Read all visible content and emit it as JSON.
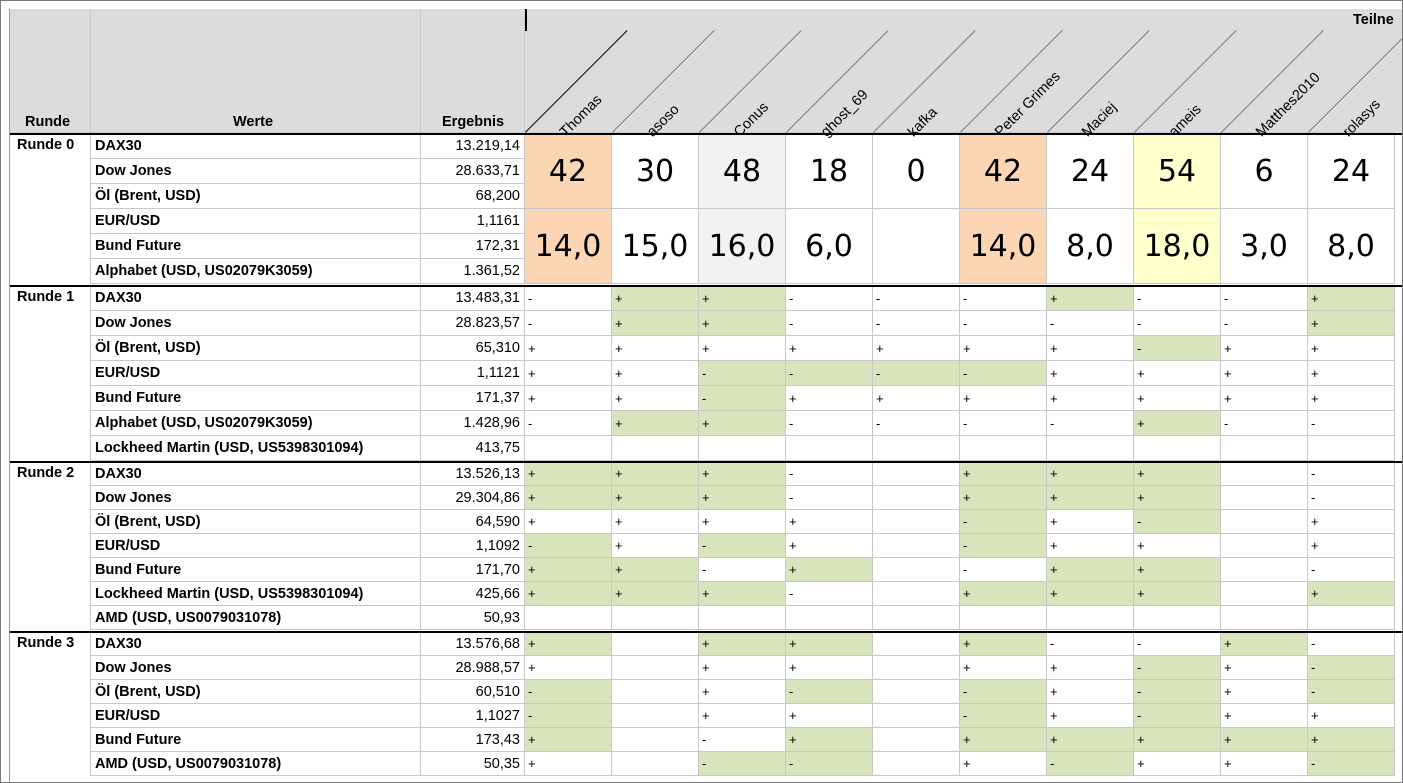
{
  "header": {
    "runde_label": "Runde",
    "werte_label": "Werte",
    "ergebnis_label": "Ergebnis",
    "teilnehmer_label": "Teilne"
  },
  "participants": [
    "Thomas",
    "asoso",
    "Conus",
    "ghost_69",
    "kafka",
    "Peter Grimes",
    "Maciej",
    "ameis",
    "Matthes2010",
    "rolasys"
  ],
  "rounds": [
    {
      "label": "Runde 0",
      "rows": [
        {
          "wert": "DAX30",
          "ergebnis": "13.219,14"
        },
        {
          "wert": "Dow Jones",
          "ergebnis": "28.633,71"
        },
        {
          "wert": "Öl (Brent, USD)",
          "ergebnis": "68,200"
        },
        {
          "wert": "EUR/USD",
          "ergebnis": "1,1161"
        },
        {
          "wert": "Bund Future",
          "ergebnis": "172,31"
        },
        {
          "wert": "Alphabet (USD, US02079K3059)",
          "ergebnis": "1.361,52"
        }
      ],
      "points": [
        "42",
        "30",
        "48",
        "18",
        "0",
        "42",
        "24",
        "54",
        "6",
        "24"
      ],
      "scores": [
        "14,0",
        "15,0",
        "16,0",
        "6,0",
        "",
        "14,0",
        "8,0",
        "18,0",
        "3,0",
        "8,0"
      ],
      "highlight": [
        "orange",
        "",
        "grey",
        "",
        "",
        "orange",
        "",
        "yellow",
        "",
        ""
      ]
    },
    {
      "label": "Runde 1",
      "rows": [
        {
          "wert": "DAX30",
          "ergebnis": "13.483,31",
          "marks": [
            "-",
            "+",
            "+",
            "-",
            "-",
            "-",
            "+",
            "-",
            "-",
            "+"
          ],
          "green": [
            0,
            1,
            1,
            0,
            0,
            0,
            1,
            0,
            0,
            1
          ]
        },
        {
          "wert": "Dow Jones",
          "ergebnis": "28.823,57",
          "marks": [
            "-",
            "+",
            "+",
            "-",
            "-",
            "-",
            "-",
            "-",
            "-",
            "+"
          ],
          "green": [
            0,
            1,
            1,
            0,
            0,
            0,
            0,
            0,
            0,
            1
          ]
        },
        {
          "wert": "Öl (Brent, USD)",
          "ergebnis": "65,310",
          "marks": [
            "+",
            "+",
            "+",
            "+",
            "+",
            "+",
            "+",
            "-",
            "+",
            "+"
          ],
          "green": [
            0,
            0,
            0,
            0,
            0,
            0,
            0,
            1,
            0,
            0
          ]
        },
        {
          "wert": "EUR/USD",
          "ergebnis": "1,1121",
          "marks": [
            "+",
            "+",
            "-",
            "-",
            "-",
            "-",
            "+",
            "+",
            "+",
            "+"
          ],
          "green": [
            0,
            0,
            1,
            1,
            1,
            1,
            0,
            0,
            0,
            0
          ]
        },
        {
          "wert": "Bund Future",
          "ergebnis": "171,37",
          "marks": [
            "+",
            "+",
            "-",
            "+",
            "+",
            "+",
            "+",
            "+",
            "+",
            "+"
          ],
          "green": [
            0,
            0,
            1,
            0,
            0,
            0,
            0,
            0,
            0,
            0
          ]
        },
        {
          "wert": "Alphabet (USD, US02079K3059)",
          "ergebnis": "1.428,96",
          "marks": [
            "-",
            "+",
            "+",
            "-",
            "-",
            "-",
            "-",
            "+",
            "-",
            "-"
          ],
          "green": [
            0,
            1,
            1,
            0,
            0,
            0,
            0,
            1,
            0,
            0
          ]
        },
        {
          "wert": "Lockheed Martin (USD, US5398301094)",
          "ergebnis": "413,75",
          "marks": [
            "",
            "",
            "",
            "",
            "",
            "",
            "",
            "",
            "",
            ""
          ],
          "green": [
            0,
            0,
            0,
            0,
            0,
            0,
            0,
            0,
            0,
            0
          ]
        }
      ]
    },
    {
      "label": "Runde 2",
      "rows": [
        {
          "wert": "DAX30",
          "ergebnis": "13.526,13",
          "marks": [
            "+",
            "+",
            "+",
            "-",
            "",
            "+",
            "+",
            "+",
            "",
            "-"
          ],
          "green": [
            1,
            1,
            1,
            0,
            0,
            1,
            1,
            1,
            0,
            0
          ]
        },
        {
          "wert": "Dow Jones",
          "ergebnis": "29.304,86",
          "marks": [
            "+",
            "+",
            "+",
            "-",
            "",
            "+",
            "+",
            "+",
            "",
            "-"
          ],
          "green": [
            1,
            1,
            1,
            0,
            0,
            1,
            1,
            1,
            0,
            0
          ]
        },
        {
          "wert": "Öl (Brent, USD)",
          "ergebnis": "64,590",
          "marks": [
            "+",
            "+",
            "+",
            "+",
            "",
            "-",
            "+",
            "-",
            "",
            "+"
          ],
          "green": [
            0,
            0,
            0,
            0,
            0,
            1,
            0,
            1,
            0,
            0
          ]
        },
        {
          "wert": "EUR/USD",
          "ergebnis": "1,1092",
          "marks": [
            "-",
            "+",
            "-",
            "+",
            "",
            "-",
            "+",
            "+",
            "",
            "+"
          ],
          "green": [
            1,
            0,
            1,
            0,
            0,
            1,
            0,
            0,
            0,
            0
          ]
        },
        {
          "wert": "Bund Future",
          "ergebnis": "171,70",
          "marks": [
            "+",
            "+",
            "-",
            "+",
            "",
            "-",
            "+",
            "+",
            "",
            "-"
          ],
          "green": [
            1,
            1,
            0,
            1,
            0,
            0,
            1,
            1,
            0,
            0
          ]
        },
        {
          "wert": "Lockheed Martin (USD, US5398301094)",
          "ergebnis": "425,66",
          "marks": [
            "+",
            "+",
            "+",
            "-",
            "",
            "+",
            "+",
            "+",
            "",
            "+"
          ],
          "green": [
            1,
            1,
            1,
            0,
            0,
            1,
            1,
            1,
            0,
            1
          ]
        },
        {
          "wert": "AMD (USD, US0079031078)",
          "ergebnis": "50,93",
          "marks": [
            "",
            "",
            "",
            "",
            "",
            "",
            "",
            "",
            "",
            ""
          ],
          "green": [
            0,
            0,
            0,
            0,
            0,
            0,
            0,
            0,
            0,
            0
          ]
        }
      ]
    },
    {
      "label": "Runde 3",
      "rows": [
        {
          "wert": "DAX30",
          "ergebnis": "13.576,68",
          "marks": [
            "+",
            "",
            "+",
            "+",
            "",
            "+",
            "-",
            "-",
            "+",
            "-"
          ],
          "green": [
            1,
            0,
            1,
            1,
            0,
            1,
            0,
            0,
            1,
            0
          ]
        },
        {
          "wert": "Dow Jones",
          "ergebnis": "28.988,57",
          "marks": [
            "+",
            "",
            "+",
            "+",
            "",
            "+",
            "+",
            "-",
            "+",
            "-"
          ],
          "green": [
            0,
            0,
            0,
            0,
            0,
            0,
            0,
            1,
            0,
            1
          ]
        },
        {
          "wert": "Öl (Brent, USD)",
          "ergebnis": "60,510",
          "marks": [
            "-",
            "",
            "+",
            "-",
            "",
            "-",
            "+",
            "-",
            "+",
            "-"
          ],
          "green": [
            1,
            0,
            0,
            1,
            0,
            1,
            0,
            1,
            0,
            1
          ]
        },
        {
          "wert": "EUR/USD",
          "ergebnis": "1,1027",
          "marks": [
            "-",
            "",
            "+",
            "+",
            "",
            "-",
            "+",
            "-",
            "+",
            "+"
          ],
          "green": [
            1,
            0,
            0,
            0,
            0,
            1,
            0,
            1,
            0,
            0
          ]
        },
        {
          "wert": "Bund Future",
          "ergebnis": "173,43",
          "marks": [
            "+",
            "",
            "-",
            "+",
            "",
            "+",
            "+",
            "+",
            "+",
            "+"
          ],
          "green": [
            1,
            0,
            0,
            1,
            0,
            1,
            1,
            1,
            1,
            1
          ]
        },
        {
          "wert": "AMD (USD, US0079031078)",
          "ergebnis": "50,35",
          "marks": [
            "+",
            "",
            "-",
            "-",
            "",
            "+",
            "-",
            "+",
            "+",
            "-"
          ],
          "green": [
            0,
            0,
            1,
            1,
            0,
            0,
            1,
            0,
            0,
            1
          ]
        }
      ]
    }
  ]
}
